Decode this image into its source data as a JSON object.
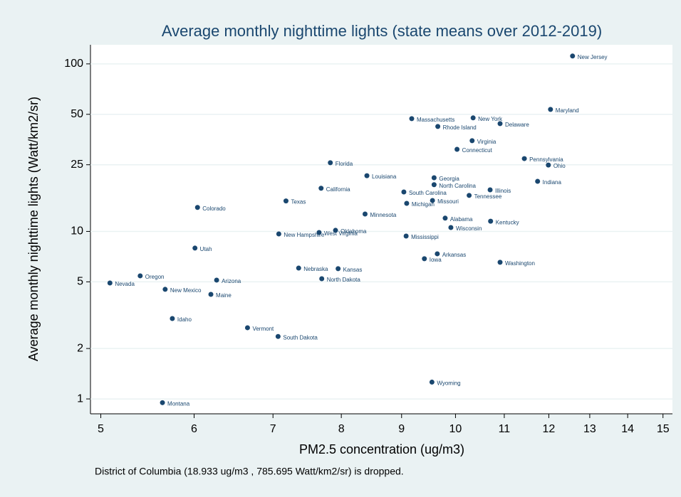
{
  "chart_data": {
    "type": "scatter",
    "title": "Average monthly nighttime lights (state means over 2012-2019)",
    "x_label": "PM2.5 concentration (ug/m3)",
    "y_label": "Average monthly nighttime lights (Watt/km2/sr)",
    "note": "District of Columbia (18.933 ug/m3 , 785.695 Watt/km2/sr) is dropped.",
    "xscale": "log",
    "yscale": "log",
    "grid": true,
    "color": "#1a476f",
    "xlim": [
      4.9,
      15.28
    ],
    "ylim": [
      0.815,
      130
    ],
    "xticks": [
      5,
      6,
      7,
      8,
      9,
      10,
      11,
      12,
      13,
      14,
      15
    ],
    "yticks": [
      1,
      2,
      5,
      10,
      25,
      50,
      100
    ],
    "point_labels": [
      "New Jersey",
      "Maryland",
      "Massachusetts",
      "New York",
      "Delaware",
      "Rhode Island",
      "Virginia",
      "Connecticut",
      "Pennsylvania",
      "Ohio",
      "Florida",
      "Louisiana",
      "Georgia",
      "Indiana",
      "North Carolina",
      "California",
      "Illinois",
      "South Carolina",
      "Tennessee",
      "Missouri",
      "Texas",
      "Michigan",
      "Colorado",
      "Minnesota",
      "Alabama",
      "Kentucky",
      "Wisconsin",
      "Oklahoma",
      "West Virginia",
      "New Hampshire",
      "Mississippi",
      "Utah",
      "Arkansas",
      "Iowa",
      "Washington",
      "Nebraska",
      "Kansas",
      "Oregon",
      "North Dakota",
      "Arizona",
      "Nevada",
      "New Mexico",
      "Maine",
      "Idaho",
      "Vermont",
      "South Dakota",
      "Wyoming",
      "Montana"
    ],
    "x": [
      12.57,
      12.04,
      9.18,
      10.35,
      10.91,
      9.66,
      10.33,
      10.03,
      11.44,
      11.99,
      7.83,
      8.41,
      9.59,
      11.74,
      9.59,
      7.69,
      10.7,
      9.04,
      10.27,
      9.56,
      7.18,
      9.09,
      6.04,
      8.38,
      9.8,
      10.71,
      9.91,
      7.91,
      7.66,
      7.08,
      9.08,
      6.01,
      9.65,
      9.41,
      10.91,
      7.36,
      7.95,
      5.4,
      7.7,
      6.27,
      5.09,
      5.67,
      6.2,
      5.75,
      6.66,
      7.07,
      9.55,
      5.64
    ],
    "values": [
      111.4,
      53.5,
      47.1,
      47.6,
      44.0,
      42.3,
      34.8,
      30.9,
      27.2,
      24.9,
      25.7,
      21.5,
      20.9,
      19.9,
      19.0,
      18.1,
      17.7,
      17.2,
      16.4,
      15.3,
      15.2,
      14.7,
      13.9,
      12.7,
      12.0,
      11.5,
      10.55,
      10.15,
      9.85,
      9.66,
      9.38,
      7.95,
      7.35,
      6.87,
      6.54,
      6.04,
      5.99,
      5.43,
      5.22,
      5.12,
      4.92,
      4.51,
      4.21,
      3.02,
      2.66,
      2.36,
      1.26,
      0.95
    ]
  }
}
